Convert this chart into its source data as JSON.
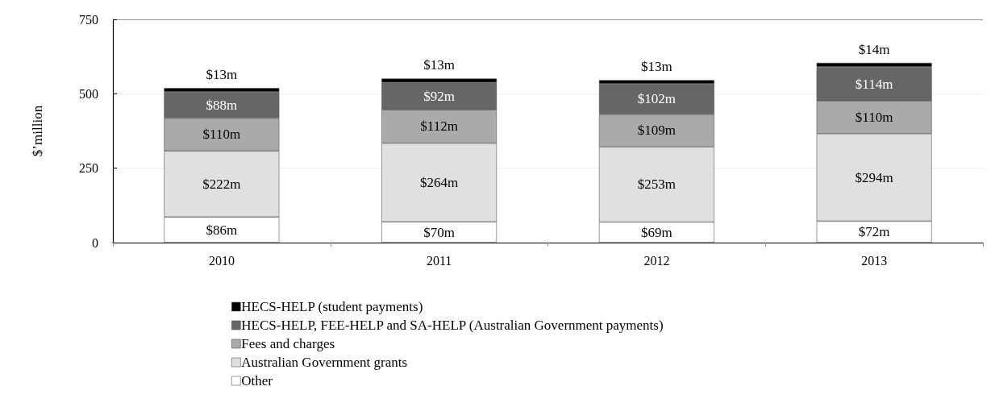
{
  "chart_data": {
    "type": "bar",
    "stacked": true,
    "ylabel": "$’million",
    "categories": [
      "2010",
      "2011",
      "2012",
      "2013"
    ],
    "ylim": [
      0,
      750
    ],
    "yticks": [
      0,
      250,
      500,
      750
    ],
    "grid": "y",
    "legend": "bottom",
    "series": [
      {
        "name": "Other",
        "color": "#ffffff",
        "values": [
          86,
          70,
          69,
          72
        ],
        "value_labels": [
          "$86m",
          "$70m",
          "$69m",
          "$72m"
        ]
      },
      {
        "name": "Australian Government grants",
        "color": "#e0e0e0",
        "values": [
          222,
          264,
          253,
          294
        ],
        "value_labels": [
          "$222m",
          "$264m",
          "$253m",
          "$294m"
        ]
      },
      {
        "name": "Fees and charges",
        "color": "#aaaaaa",
        "values": [
          110,
          112,
          109,
          110
        ],
        "value_labels": [
          "$110m",
          "$112m",
          "$109m",
          "$110m"
        ]
      },
      {
        "name": "HECS-HELP, FEE-HELP and SA-HELP (Australian Government payments)",
        "color": "#666666",
        "values": [
          88,
          92,
          102,
          114
        ],
        "value_labels": [
          "$88m",
          "$92m",
          "$102m",
          "$114m"
        ]
      },
      {
        "name": "HECS-HELP (student payments)",
        "color": "#000000",
        "values": [
          13,
          13,
          13,
          14
        ],
        "value_labels": [
          "$13m",
          "$13m",
          "$13m",
          "$14m"
        ]
      }
    ]
  }
}
